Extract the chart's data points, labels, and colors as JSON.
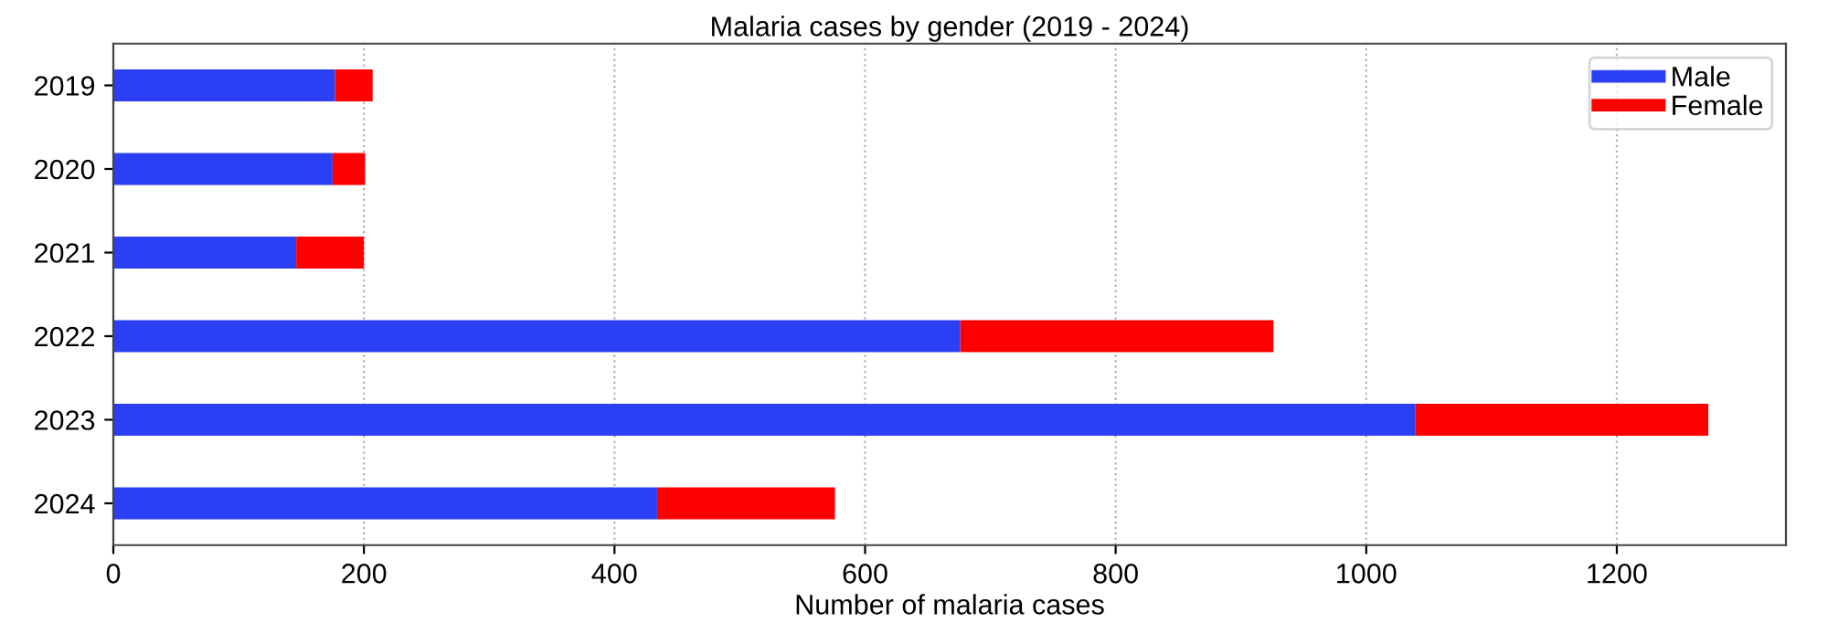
{
  "chart_data": {
    "type": "bar",
    "orientation": "horizontal",
    "stacked": true,
    "title": "Malaria cases by gender (2019 - 2024)",
    "xlabel": "Number of malaria cases",
    "categories": [
      "2019",
      "2020",
      "2021",
      "2022",
      "2023",
      "2024"
    ],
    "series": [
      {
        "name": "Male",
        "color": "#2b3ff5",
        "values": [
          177,
          175,
          146,
          676,
          1039,
          434
        ]
      },
      {
        "name": "Female",
        "color": "#ff0000",
        "values": [
          30,
          26,
          54,
          250,
          234,
          142
        ]
      }
    ],
    "xlim": [
      0,
      1335
    ],
    "xticks": [
      0,
      200,
      400,
      600,
      800,
      1000,
      1200
    ],
    "grid": "x",
    "legend": "top right"
  }
}
